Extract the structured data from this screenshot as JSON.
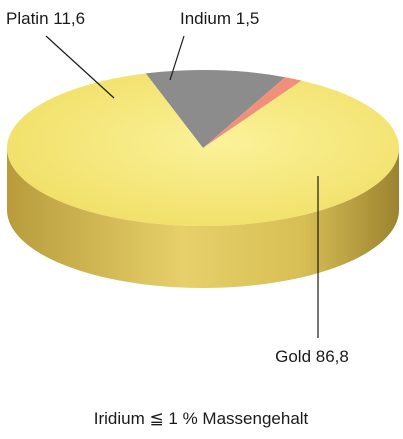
{
  "chart_data": {
    "type": "pie",
    "style": "3d",
    "slices": [
      {
        "name": "Gold",
        "value": 86.8,
        "label": "Gold 86,8",
        "color": "#f3e36a",
        "side_color": "#c9b04a"
      },
      {
        "name": "Platin",
        "value": 11.6,
        "label": "Platin 11,6",
        "color": "#8c8c8c",
        "side_color": "#6e6e6e"
      },
      {
        "name": "Indium",
        "value": 1.5,
        "label": "Indium 1,5",
        "color": "#f0907a",
        "side_color": "#c07060"
      }
    ],
    "footnote": "Iridium ≦ 1 % Massengehalt",
    "legend": "none"
  }
}
